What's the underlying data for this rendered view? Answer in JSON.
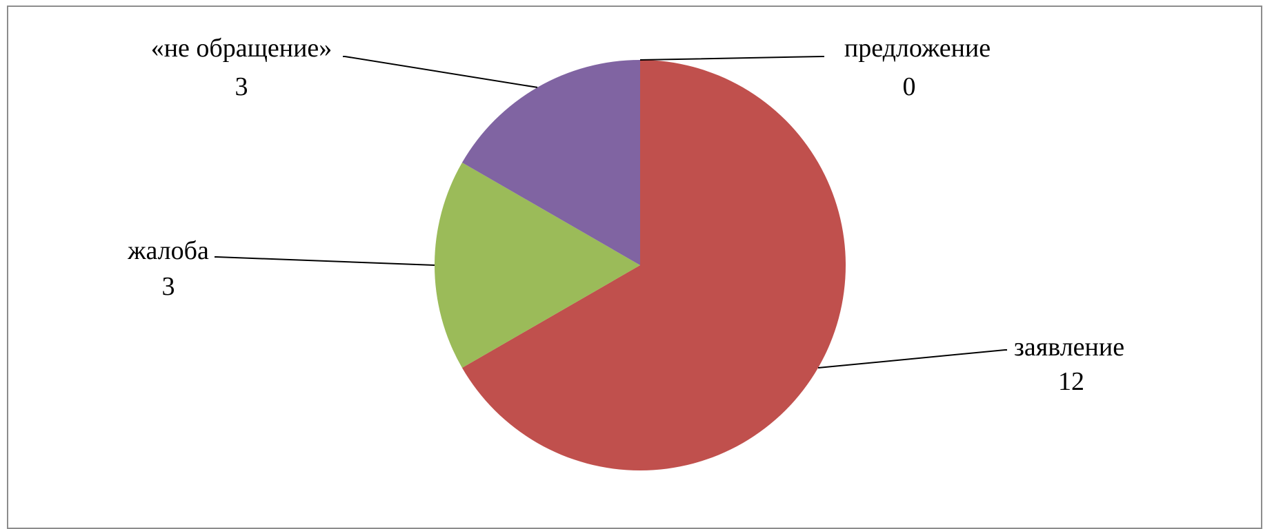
{
  "chart_data": {
    "type": "pie",
    "title": "",
    "slices": [
      {
        "label": "предложение",
        "value": 0,
        "value_label": "0",
        "color": "#4F81BD"
      },
      {
        "label": "заявление",
        "value": 12,
        "value_label": "12",
        "color": "#C0504D"
      },
      {
        "label": "жалоба",
        "value": 3,
        "value_label": "3",
        "color": "#9BBB59"
      },
      {
        "label": "«не обращение»",
        "value": 3,
        "value_label": "3",
        "color": "#8064A2"
      }
    ],
    "legend": "none",
    "data_labels": "outside with leader lines (category name and value)"
  }
}
